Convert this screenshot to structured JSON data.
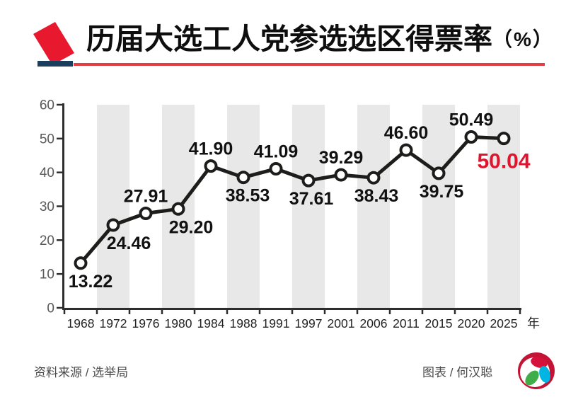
{
  "header": {
    "title": "历届大选工人党参选选区得票率",
    "title_suffix": "（%）"
  },
  "footer": {
    "source": "资料来源 / 选举局",
    "credit": "图表 / 何汉聪"
  },
  "icons": {
    "ballot_icon": "ballot-paper-into-slot",
    "brand_logo": "zaobao-petal-logo"
  },
  "style": {
    "accent_red": "#e0142d",
    "icon_red": "#e8182f",
    "underline_red": "#e23c44",
    "navy": "#1c3e5d",
    "stripe": "#e8e8e8",
    "line": "#1d1d1b",
    "marker_fill": "#ffffff",
    "axis": "#2d2d2d",
    "ytick_label": "#58595b",
    "xtick_label": "#222222",
    "value_label": "#111111",
    "logo_crimson": "#c41435",
    "logo_red": "#d6123b",
    "logo_green": "#3fae49",
    "logo_cyan": "#00b5e2"
  },
  "chart_data": {
    "type": "line",
    "title": "历届大选工人党参选选区得票率（%）",
    "categories": [
      "1968",
      "1972",
      "1976",
      "1980",
      "1984",
      "1988",
      "1991",
      "1997",
      "2001",
      "2006",
      "2011",
      "2015",
      "2020",
      "2025"
    ],
    "values": [
      13.22,
      24.46,
      27.91,
      29.2,
      41.9,
      38.53,
      41.09,
      37.61,
      39.29,
      38.43,
      46.6,
      39.75,
      50.49,
      50.04
    ],
    "value_labels": [
      "13.22",
      "24.46",
      "27.91",
      "29.20",
      "41.90",
      "38.53",
      "41.09",
      "37.61",
      "39.29",
      "38.43",
      "46.60",
      "39.75",
      "50.49",
      "50.04"
    ],
    "label_position": [
      "below",
      "below",
      "above",
      "below",
      "above",
      "below",
      "above",
      "below",
      "above",
      "below",
      "above",
      "below",
      "above",
      "below"
    ],
    "highlight_index": 13,
    "x_unit": "年",
    "xlabel": "",
    "ylabel": "",
    "ylim": [
      0,
      60
    ],
    "yticks": [
      0,
      10,
      20,
      30,
      40,
      50,
      60
    ],
    "stripe_columns": [
      1,
      3,
      5,
      7,
      9,
      11,
      13
    ],
    "grid": false,
    "legend": "none"
  }
}
